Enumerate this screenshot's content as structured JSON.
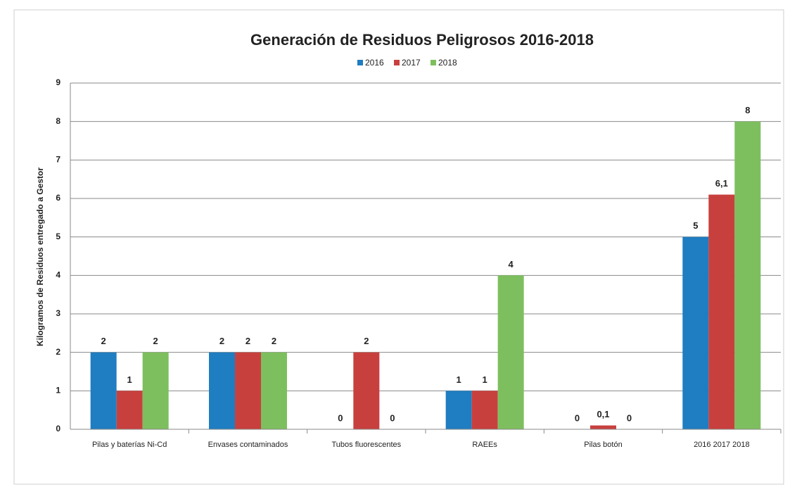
{
  "chart_data": {
    "type": "bar",
    "title": "Generación de Residuos Peligrosos 2016-2018",
    "y_label": "Kilogramos de Residuos entregado a Gestor",
    "categories": [
      "Pilas y baterías Ni-Cd",
      "Envases contaminados",
      "Tubos fluorescentes",
      "RAEEs",
      "Pilas botón",
      "2016 2017 2018"
    ],
    "series": [
      {
        "name": "2016",
        "color": "#1f7dc1",
        "values": [
          2,
          2,
          0,
          1,
          0,
          5
        ],
        "value_labels": [
          "2",
          "2",
          "0",
          "1",
          "0",
          "5"
        ]
      },
      {
        "name": "2017",
        "color": "#c8403e",
        "values": [
          1,
          2,
          2,
          1,
          0.1,
          6.1
        ],
        "value_labels": [
          "1",
          "2",
          "2",
          "1",
          "0,1",
          "6,1"
        ]
      },
      {
        "name": "2018",
        "color": "#7dbf5e",
        "values": [
          2,
          2,
          0,
          4,
          0,
          8
        ],
        "value_labels": [
          "2",
          "2",
          "0",
          "4",
          "0",
          "8"
        ]
      }
    ],
    "ylim": [
      0,
      9
    ],
    "yticks": [
      0,
      1,
      2,
      3,
      4,
      5,
      6,
      7,
      8,
      9
    ],
    "grid": true,
    "legend": "top"
  }
}
